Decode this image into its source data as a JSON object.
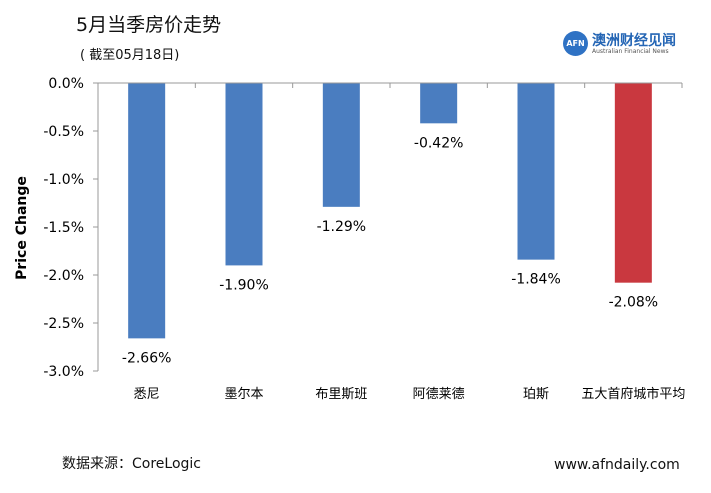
{
  "header": {
    "title": "5月当季房价走势",
    "subtitle": "( 截至05月18日)"
  },
  "brand": {
    "logo_mark": "AFN",
    "name": "澳洲财经见闻",
    "name_en": "Australian Financial News",
    "color": "#2566b5"
  },
  "footer": {
    "source": "数据来源：CoreLogic",
    "website": "www.afndaily.com"
  },
  "chart_data": {
    "type": "bar",
    "categories": [
      "悉尼",
      "墨尔本",
      "布里斯班",
      "阿德莱德",
      "珀斯",
      "五大首府城市平均"
    ],
    "values": [
      -2.66,
      -1.9,
      -1.29,
      -0.42,
      -1.84,
      -2.08
    ],
    "data_labels": [
      "-2.66%",
      "-1.90%",
      "-1.29%",
      "-0.42%",
      "-1.84%",
      "-2.08%"
    ],
    "bar_colors": [
      "#4a7dc0",
      "#4a7dc0",
      "#4a7dc0",
      "#4a7dc0",
      "#4a7dc0",
      "#c9383f"
    ],
    "ylabel": "Price Change",
    "xlabel": "",
    "ylim": [
      -3.0,
      0.0
    ],
    "yticks": [
      0.0,
      -0.5,
      -1.0,
      -1.5,
      -2.0,
      -2.5,
      -3.0
    ],
    "ytick_labels": [
      "0.0%",
      "-0.5%",
      "-1.0%",
      "-1.5%",
      "-2.0%",
      "-2.5%",
      "-3.0%"
    ],
    "grid": false,
    "legend": "none"
  }
}
